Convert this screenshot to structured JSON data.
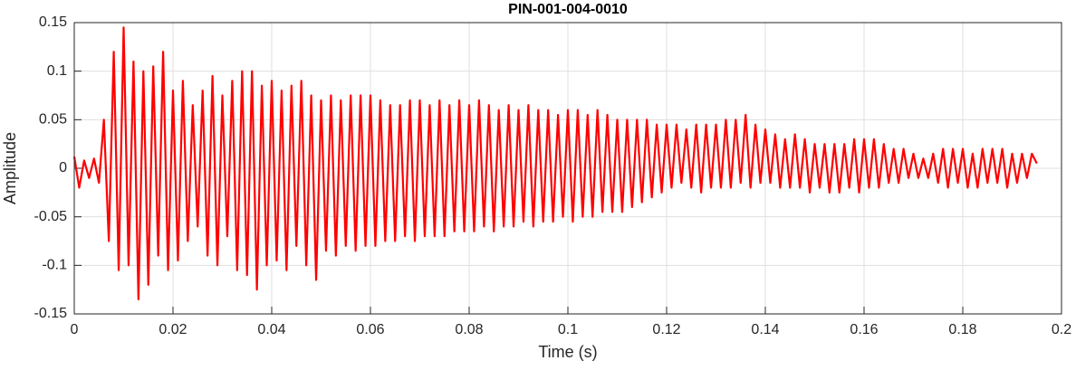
{
  "chart_data": {
    "type": "line",
    "title": "PIN-001-004-0010",
    "x_label": "Time (s)",
    "y_label": "Amplitude",
    "x": [
      0,
      0.001,
      0.002,
      0.003,
      0.004,
      0.005,
      0.006,
      0.007,
      0.008,
      0.009,
      0.01,
      0.011,
      0.012,
      0.013,
      0.014,
      0.015,
      0.016,
      0.017,
      0.018,
      0.019,
      0.02,
      0.021,
      0.022,
      0.023,
      0.024,
      0.025,
      0.026,
      0.027,
      0.028,
      0.029,
      0.03,
      0.031,
      0.032,
      0.033,
      0.034,
      0.035,
      0.036,
      0.037,
      0.038,
      0.039,
      0.04,
      0.041,
      0.042,
      0.043,
      0.044,
      0.045,
      0.046,
      0.047,
      0.048,
      0.049,
      0.05,
      0.051,
      0.052,
      0.053,
      0.054,
      0.055,
      0.056,
      0.057,
      0.058,
      0.059,
      0.06,
      0.061,
      0.062,
      0.063,
      0.064,
      0.065,
      0.066,
      0.067,
      0.068,
      0.069,
      0.07,
      0.071,
      0.072,
      0.073,
      0.074,
      0.075,
      0.076,
      0.077,
      0.078,
      0.079,
      0.08,
      0.081,
      0.082,
      0.083,
      0.084,
      0.085,
      0.086,
      0.087,
      0.088,
      0.089,
      0.09,
      0.091,
      0.092,
      0.093,
      0.094,
      0.095,
      0.096,
      0.097,
      0.098,
      0.099,
      0.1,
      0.101,
      0.102,
      0.103,
      0.104,
      0.105,
      0.106,
      0.107,
      0.108,
      0.109,
      0.11,
      0.111,
      0.112,
      0.113,
      0.114,
      0.115,
      0.116,
      0.117,
      0.118,
      0.119,
      0.12,
      0.121,
      0.122,
      0.123,
      0.124,
      0.125,
      0.126,
      0.127,
      0.128,
      0.129,
      0.13,
      0.131,
      0.132,
      0.133,
      0.134,
      0.135,
      0.136,
      0.137,
      0.138,
      0.139,
      0.14,
      0.141,
      0.142,
      0.143,
      0.144,
      0.145,
      0.146,
      0.147,
      0.148,
      0.149,
      0.15,
      0.151,
      0.152,
      0.153,
      0.154,
      0.155,
      0.156,
      0.157,
      0.158,
      0.159,
      0.16,
      0.161,
      0.162,
      0.163,
      0.164,
      0.165,
      0.166,
      0.167,
      0.168,
      0.169,
      0.17,
      0.171,
      0.172,
      0.173,
      0.174,
      0.175,
      0.176,
      0.177,
      0.178,
      0.179,
      0.18,
      0.181,
      0.182,
      0.183,
      0.184,
      0.185,
      0.186,
      0.187,
      0.188,
      0.189,
      0.19,
      0.191,
      0.192,
      0.193,
      0.194,
      0.195
    ],
    "series": [
      {
        "color": "#ff0000",
        "values": [
          0.012,
          -0.02,
          0.008,
          -0.01,
          0.01,
          -0.015,
          0.05,
          -0.075,
          0.12,
          -0.105,
          0.145,
          -0.1,
          0.11,
          -0.135,
          0.1,
          -0.12,
          0.105,
          -0.09,
          0.12,
          -0.105,
          0.08,
          -0.095,
          0.09,
          -0.075,
          0.065,
          -0.06,
          0.08,
          -0.09,
          0.095,
          -0.1,
          0.075,
          -0.07,
          0.09,
          -0.105,
          0.1,
          -0.11,
          0.1,
          -0.125,
          0.085,
          -0.1,
          0.09,
          -0.095,
          0.08,
          -0.105,
          0.085,
          -0.08,
          0.09,
          -0.1,
          0.075,
          -0.115,
          0.07,
          -0.085,
          0.075,
          -0.09,
          0.07,
          -0.08,
          0.075,
          -0.085,
          0.075,
          -0.08,
          0.075,
          -0.08,
          0.07,
          -0.075,
          0.065,
          -0.075,
          0.065,
          -0.07,
          0.07,
          -0.075,
          0.07,
          -0.07,
          0.065,
          -0.07,
          0.07,
          -0.07,
          0.065,
          -0.065,
          0.07,
          -0.065,
          0.065,
          -0.065,
          0.07,
          -0.06,
          0.065,
          -0.065,
          0.06,
          -0.06,
          0.065,
          -0.06,
          0.06,
          -0.055,
          0.065,
          -0.06,
          0.06,
          -0.055,
          0.06,
          -0.055,
          0.055,
          -0.05,
          0.06,
          -0.055,
          0.06,
          -0.05,
          0.055,
          -0.05,
          0.06,
          -0.045,
          0.055,
          -0.045,
          0.05,
          -0.045,
          0.05,
          -0.04,
          0.05,
          -0.035,
          0.05,
          -0.03,
          0.045,
          -0.025,
          0.045,
          -0.02,
          0.045,
          -0.015,
          0.04,
          -0.02,
          0.045,
          -0.025,
          0.045,
          -0.02,
          0.045,
          -0.02,
          0.05,
          -0.02,
          0.05,
          -0.015,
          0.055,
          -0.02,
          0.045,
          -0.015,
          0.04,
          -0.015,
          0.035,
          -0.02,
          0.03,
          -0.02,
          0.035,
          -0.02,
          0.03,
          -0.025,
          0.025,
          -0.02,
          0.025,
          -0.025,
          0.025,
          -0.025,
          0.025,
          -0.02,
          0.03,
          -0.025,
          0.03,
          -0.02,
          0.03,
          -0.02,
          0.025,
          -0.015,
          0.02,
          -0.015,
          0.02,
          -0.01,
          0.015,
          -0.01,
          0.01,
          -0.01,
          0.015,
          -0.015,
          0.02,
          -0.02,
          0.02,
          -0.015,
          0.02,
          -0.02,
          0.015,
          -0.02,
          0.02,
          -0.015,
          0.02,
          -0.015,
          0.02,
          -0.02,
          0.015,
          -0.015,
          0.015,
          -0.01,
          0.015,
          0.005
        ]
      }
    ],
    "xlim": [
      0,
      0.2
    ],
    "xticks": [
      0,
      0.02,
      0.04,
      0.06,
      0.08,
      0.1,
      0.12,
      0.14,
      0.16,
      0.18,
      0.2
    ],
    "ylim": [
      -0.15,
      0.15
    ],
    "yticks": [
      -0.15,
      -0.1,
      -0.05,
      0,
      0.05,
      0.1,
      0.15
    ],
    "grid": true
  }
}
